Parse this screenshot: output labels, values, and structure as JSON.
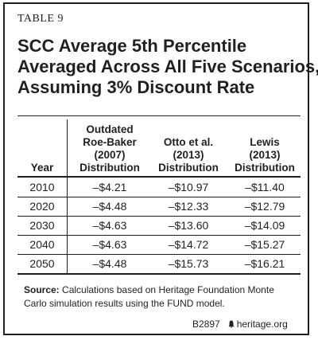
{
  "table_label": "TABLE 9",
  "title_lines": [
    "SCC Average 5th Percentile",
    "Averaged Across All Five Scenarios,",
    "Assuming 3% Discount Rate"
  ],
  "columns": [
    {
      "lines": [
        "Year"
      ]
    },
    {
      "lines": [
        "Outdated",
        "Roe-Baker",
        "(2007)",
        "Distribution"
      ]
    },
    {
      "lines": [
        "Otto et al.",
        "(2013)",
        "Distribution"
      ]
    },
    {
      "lines": [
        "Lewis",
        "(2013)",
        "Distribution"
      ]
    }
  ],
  "rows": [
    {
      "year": "2010",
      "roe_baker": "–$4.21",
      "otto": "–$10.97",
      "lewis": "–$11.40"
    },
    {
      "year": "2020",
      "roe_baker": "–$4.48",
      "otto": "–$12.33",
      "lewis": "–$12.79"
    },
    {
      "year": "2030",
      "roe_baker": "–$4.63",
      "otto": "–$13.60",
      "lewis": "–$14.09"
    },
    {
      "year": "2040",
      "roe_baker": "–$4.63",
      "otto": "–$14.72",
      "lewis": "–$15.27"
    },
    {
      "year": "2050",
      "roe_baker": "–$4.48",
      "otto": "–$15.73",
      "lewis": "–$16.21"
    }
  ],
  "source": {
    "label": "Source:",
    "text": "Calculations based on Heritage Foundation Monte Carlo simulation results using the FUND model."
  },
  "footer": {
    "code": "B2897",
    "icon": "liberty-bell-icon",
    "site": "heritage.org"
  }
}
